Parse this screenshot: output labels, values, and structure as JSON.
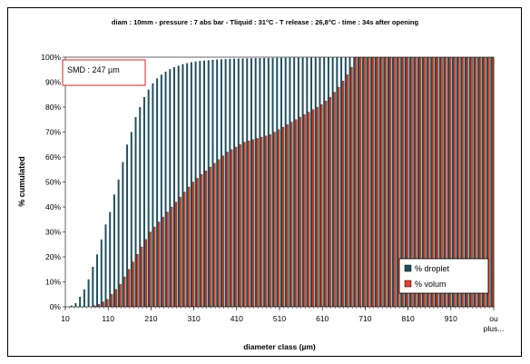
{
  "chart_data": {
    "type": "bar",
    "title": "diam : 10mm - pressure : 7 abs bar - Tliquid : 31°C  - T release : 26,8°C - time : 34s after opening",
    "xlabel": "diameter class (µm)",
    "ylabel": "% cumulated",
    "ylim": [
      0,
      100
    ],
    "y_ticks": [
      "0%",
      "10%",
      "20%",
      "30%",
      "40%",
      "50%",
      "60%",
      "70%",
      "80%",
      "90%",
      "100%"
    ],
    "x_ticks": [
      "10",
      "110",
      "210",
      "310",
      "410",
      "510",
      "610",
      "710",
      "810",
      "910",
      "ou plus..."
    ],
    "x_range": [
      10,
      1010
    ],
    "bin_width": 10,
    "annotation": "SMD : 247 µm",
    "legend": {
      "position": "bottom-right"
    },
    "grid": false,
    "series": [
      {
        "name": "% droplet",
        "color": "#1f4f5f",
        "curve_points": [
          [
            10,
            0
          ],
          [
            20,
            0.5
          ],
          [
            30,
            1.5
          ],
          [
            40,
            4
          ],
          [
            50,
            7
          ],
          [
            60,
            11
          ],
          [
            70,
            16
          ],
          [
            80,
            21
          ],
          [
            90,
            27
          ],
          [
            100,
            33
          ],
          [
            110,
            38
          ],
          [
            120,
            45
          ],
          [
            130,
            51
          ],
          [
            140,
            58
          ],
          [
            150,
            65
          ],
          [
            160,
            70
          ],
          [
            170,
            76
          ],
          [
            180,
            80
          ],
          [
            190,
            84
          ],
          [
            200,
            87
          ],
          [
            210,
            89.5
          ],
          [
            220,
            91.5
          ],
          [
            230,
            93
          ],
          [
            240,
            94.2
          ],
          [
            250,
            95.2
          ],
          [
            260,
            96
          ],
          [
            270,
            96.6
          ],
          [
            280,
            97.2
          ],
          [
            290,
            97.6
          ],
          [
            300,
            98
          ],
          [
            320,
            98.5
          ],
          [
            340,
            98.8
          ],
          [
            360,
            99.1
          ],
          [
            400,
            99.4
          ],
          [
            450,
            99.6
          ],
          [
            500,
            99.75
          ],
          [
            550,
            99.85
          ],
          [
            600,
            99.92
          ],
          [
            650,
            99.97
          ],
          [
            690,
            100
          ],
          [
            1010,
            100
          ]
        ]
      },
      {
        "name": "% volum",
        "color": "#e8401c",
        "curve_points": [
          [
            10,
            0
          ],
          [
            60,
            0
          ],
          [
            70,
            0.5
          ],
          [
            80,
            1
          ],
          [
            90,
            2
          ],
          [
            100,
            3
          ],
          [
            110,
            5
          ],
          [
            120,
            7
          ],
          [
            130,
            9
          ],
          [
            140,
            12
          ],
          [
            150,
            15
          ],
          [
            160,
            18
          ],
          [
            170,
            21
          ],
          [
            180,
            24
          ],
          [
            190,
            27
          ],
          [
            200,
            30
          ],
          [
            220,
            34
          ],
          [
            240,
            38
          ],
          [
            260,
            42
          ],
          [
            280,
            46
          ],
          [
            300,
            50
          ],
          [
            320,
            53
          ],
          [
            340,
            56
          ],
          [
            360,
            59
          ],
          [
            380,
            62
          ],
          [
            400,
            64
          ],
          [
            420,
            66
          ],
          [
            440,
            67
          ],
          [
            460,
            68
          ],
          [
            480,
            69
          ],
          [
            500,
            71
          ],
          [
            520,
            73
          ],
          [
            540,
            75
          ],
          [
            560,
            77
          ],
          [
            580,
            79
          ],
          [
            600,
            81
          ],
          [
            620,
            84
          ],
          [
            640,
            88
          ],
          [
            660,
            93
          ],
          [
            670,
            96
          ],
          [
            680,
            100
          ],
          [
            1010,
            100
          ]
        ]
      }
    ]
  }
}
